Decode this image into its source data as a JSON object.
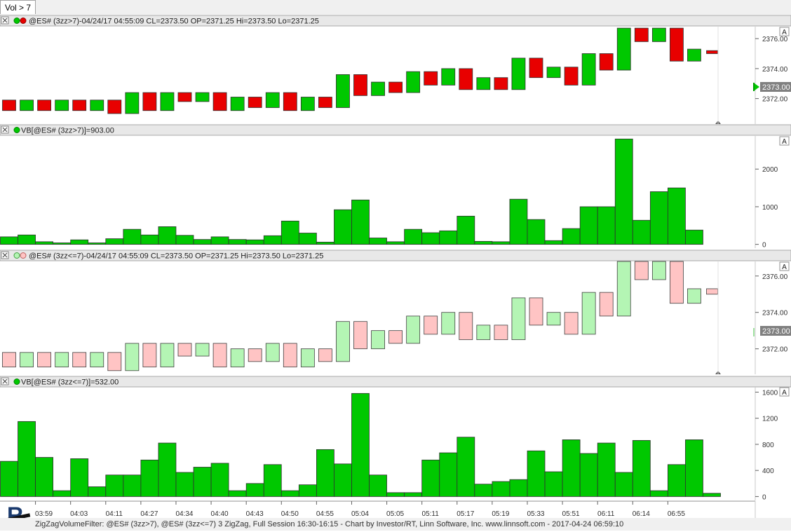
{
  "tab": {
    "label": "Vol > 7"
  },
  "footer": {
    "text": "ZigZagVolumeFilter: @ES# (3zz>7), @ES# (3zz<=7) 3 ZigZag, Full Session 16:30-16:15 - Chart by Investor/RT, Linn Software, Inc. www.linnsoft.com - 2017-04-24 06:59:10"
  },
  "colors": {
    "up": "#00c800",
    "down": "#e80000",
    "up_light": "#b4f5b4",
    "down_light": "#ffc4c4",
    "volume": "#00c800"
  },
  "chart_data": [
    {
      "type": "candlestick",
      "title": "@ES# (3zz>7)-04/24/17 04:55:09 CL=2373.50 OP=2371.25 Hi=2373.50 Lo=2371.25",
      "yticks": [
        2372.0,
        2374.0,
        2376.0
      ],
      "ylim": [
        2370.3,
        2376.8
      ],
      "last_price": "2373.00",
      "style": "solid",
      "candles": [
        {
          "o": 2371.9,
          "c": 2371.2,
          "dir": "down"
        },
        {
          "o": 2371.2,
          "c": 2371.9,
          "dir": "up"
        },
        {
          "o": 2371.9,
          "c": 2371.2,
          "dir": "down"
        },
        {
          "o": 2371.2,
          "c": 2371.9,
          "dir": "up"
        },
        {
          "o": 2371.9,
          "c": 2371.2,
          "dir": "down"
        },
        {
          "o": 2371.2,
          "c": 2371.9,
          "dir": "up"
        },
        {
          "o": 2371.9,
          "c": 2371.0,
          "dir": "down"
        },
        {
          "o": 2371.0,
          "c": 2372.4,
          "dir": "up"
        },
        {
          "o": 2372.4,
          "c": 2371.2,
          "dir": "down"
        },
        {
          "o": 2371.2,
          "c": 2372.4,
          "dir": "up"
        },
        {
          "o": 2372.4,
          "c": 2371.8,
          "dir": "down"
        },
        {
          "o": 2371.8,
          "c": 2372.4,
          "dir": "up"
        },
        {
          "o": 2372.4,
          "c": 2371.2,
          "dir": "down"
        },
        {
          "o": 2371.2,
          "c": 2372.1,
          "dir": "up"
        },
        {
          "o": 2372.1,
          "c": 2371.4,
          "dir": "down"
        },
        {
          "o": 2371.4,
          "c": 2372.4,
          "dir": "up"
        },
        {
          "o": 2372.4,
          "c": 2371.2,
          "dir": "down"
        },
        {
          "o": 2371.2,
          "c": 2372.1,
          "dir": "up"
        },
        {
          "o": 2372.1,
          "c": 2371.4,
          "dir": "down"
        },
        {
          "o": 2371.4,
          "c": 2373.6,
          "dir": "up"
        },
        {
          "o": 2373.6,
          "c": 2372.2,
          "dir": "down"
        },
        {
          "o": 2372.2,
          "c": 2373.1,
          "dir": "up"
        },
        {
          "o": 2373.1,
          "c": 2372.4,
          "dir": "down"
        },
        {
          "o": 2372.4,
          "c": 2373.8,
          "dir": "up"
        },
        {
          "o": 2373.8,
          "c": 2372.9,
          "dir": "down"
        },
        {
          "o": 2372.9,
          "c": 2374.0,
          "dir": "up"
        },
        {
          "o": 2374.0,
          "c": 2372.6,
          "dir": "down"
        },
        {
          "o": 2372.6,
          "c": 2373.4,
          "dir": "up"
        },
        {
          "o": 2373.4,
          "c": 2372.6,
          "dir": "down"
        },
        {
          "o": 2372.6,
          "c": 2374.7,
          "dir": "up"
        },
        {
          "o": 2374.7,
          "c": 2373.4,
          "dir": "down"
        },
        {
          "o": 2373.4,
          "c": 2374.1,
          "dir": "up"
        },
        {
          "o": 2374.1,
          "c": 2372.9,
          "dir": "down"
        },
        {
          "o": 2372.9,
          "c": 2375.0,
          "dir": "up"
        },
        {
          "o": 2375.0,
          "c": 2373.9,
          "dir": "down"
        },
        {
          "o": 2373.9,
          "c": 2376.7,
          "dir": "up"
        },
        {
          "o": 2376.7,
          "c": 2375.8,
          "dir": "down"
        },
        {
          "o": 2375.8,
          "c": 2376.7,
          "dir": "up"
        },
        {
          "o": 2376.7,
          "c": 2374.5,
          "dir": "down"
        },
        {
          "o": 2374.5,
          "c": 2375.3,
          "dir": "up"
        },
        {
          "o": 2375.2,
          "c": 2375.0,
          "dir": "down"
        }
      ]
    },
    {
      "type": "bar",
      "title": "VB[@ES# (3zz>7)]=903.00",
      "yticks": [
        0,
        1000,
        2000
      ],
      "ylim": [
        -100,
        2880
      ],
      "values": [
        200,
        250,
        70,
        40,
        120,
        40,
        150,
        400,
        250,
        470,
        240,
        130,
        200,
        130,
        120,
        230,
        620,
        300,
        60,
        920,
        1180,
        170,
        70,
        400,
        310,
        360,
        750,
        80,
        70,
        1200,
        660,
        100,
        420,
        1000,
        1000,
        2800,
        640,
        1400,
        1500,
        380,
        null
      ]
    },
    {
      "type": "candlestick",
      "title": "@ES# (3zz<=7)-04/24/17 04:55:09 CL=2373.50 OP=2371.25 Hi=2373.50 Lo=2371.25",
      "yticks": [
        2372.0,
        2374.0,
        2376.0
      ],
      "ylim": [
        2370.6,
        2376.8
      ],
      "last_price": "2373.00",
      "style": "light",
      "candles": [
        {
          "o": 2371.8,
          "c": 2371.0,
          "dir": "down"
        },
        {
          "o": 2371.0,
          "c": 2371.8,
          "dir": "up"
        },
        {
          "o": 2371.8,
          "c": 2371.0,
          "dir": "down"
        },
        {
          "o": 2371.0,
          "c": 2371.8,
          "dir": "up"
        },
        {
          "o": 2371.8,
          "c": 2371.0,
          "dir": "down"
        },
        {
          "o": 2371.0,
          "c": 2371.8,
          "dir": "up"
        },
        {
          "o": 2371.8,
          "c": 2370.8,
          "dir": "down"
        },
        {
          "o": 2370.8,
          "c": 2372.3,
          "dir": "up"
        },
        {
          "o": 2372.3,
          "c": 2371.0,
          "dir": "down"
        },
        {
          "o": 2371.0,
          "c": 2372.3,
          "dir": "up"
        },
        {
          "o": 2372.3,
          "c": 2371.6,
          "dir": "down"
        },
        {
          "o": 2371.6,
          "c": 2372.3,
          "dir": "up"
        },
        {
          "o": 2372.3,
          "c": 2371.0,
          "dir": "down"
        },
        {
          "o": 2371.0,
          "c": 2372.0,
          "dir": "up"
        },
        {
          "o": 2372.0,
          "c": 2371.3,
          "dir": "down"
        },
        {
          "o": 2371.3,
          "c": 2372.3,
          "dir": "up"
        },
        {
          "o": 2372.3,
          "c": 2371.0,
          "dir": "down"
        },
        {
          "o": 2371.0,
          "c": 2372.0,
          "dir": "up"
        },
        {
          "o": 2372.0,
          "c": 2371.3,
          "dir": "down"
        },
        {
          "o": 2371.3,
          "c": 2373.5,
          "dir": "up"
        },
        {
          "o": 2373.5,
          "c": 2372.0,
          "dir": "down"
        },
        {
          "o": 2372.0,
          "c": 2373.0,
          "dir": "up"
        },
        {
          "o": 2373.0,
          "c": 2372.3,
          "dir": "down"
        },
        {
          "o": 2372.3,
          "c": 2373.8,
          "dir": "up"
        },
        {
          "o": 2373.8,
          "c": 2372.8,
          "dir": "down"
        },
        {
          "o": 2372.8,
          "c": 2374.0,
          "dir": "up"
        },
        {
          "o": 2374.0,
          "c": 2372.5,
          "dir": "down"
        },
        {
          "o": 2372.5,
          "c": 2373.3,
          "dir": "up"
        },
        {
          "o": 2373.3,
          "c": 2372.5,
          "dir": "down"
        },
        {
          "o": 2372.5,
          "c": 2374.8,
          "dir": "up"
        },
        {
          "o": 2374.8,
          "c": 2373.3,
          "dir": "down"
        },
        {
          "o": 2373.3,
          "c": 2374.0,
          "dir": "up"
        },
        {
          "o": 2374.0,
          "c": 2372.8,
          "dir": "down"
        },
        {
          "o": 2372.8,
          "c": 2375.1,
          "dir": "up"
        },
        {
          "o": 2375.1,
          "c": 2373.8,
          "dir": "down"
        },
        {
          "o": 2373.8,
          "c": 2376.8,
          "dir": "up"
        },
        {
          "o": 2376.8,
          "c": 2375.8,
          "dir": "down"
        },
        {
          "o": 2375.8,
          "c": 2376.8,
          "dir": "up"
        },
        {
          "o": 2376.8,
          "c": 2374.5,
          "dir": "down"
        },
        {
          "o": 2374.5,
          "c": 2375.3,
          "dir": "up"
        },
        {
          "o": 2375.3,
          "c": 2375.0,
          "dir": "down"
        }
      ]
    },
    {
      "type": "bar",
      "title": "VB[@ES# (3zz<=7)]=532.00",
      "yticks": [
        0,
        400,
        800,
        1200,
        1600
      ],
      "ylim": [
        -60,
        1680
      ],
      "values": [
        540,
        1150,
        600,
        90,
        580,
        150,
        330,
        330,
        560,
        820,
        370,
        450,
        510,
        90,
        200,
        490,
        90,
        180,
        720,
        500,
        1580,
        330,
        60,
        60,
        560,
        670,
        910,
        190,
        230,
        260,
        700,
        380,
        870,
        660,
        820,
        370,
        860,
        90,
        490,
        870,
        50
      ]
    }
  ],
  "time_axis": {
    "labels": [
      "03:59",
      "04:03",
      "04:11",
      "04:27",
      "04:34",
      "04:40",
      "04:43",
      "04:50",
      "04:55",
      "05:04",
      "05:05",
      "05:11",
      "05:17",
      "05:19",
      "05:33",
      "05:51",
      "06:11",
      "06:14",
      "06:55"
    ]
  }
}
